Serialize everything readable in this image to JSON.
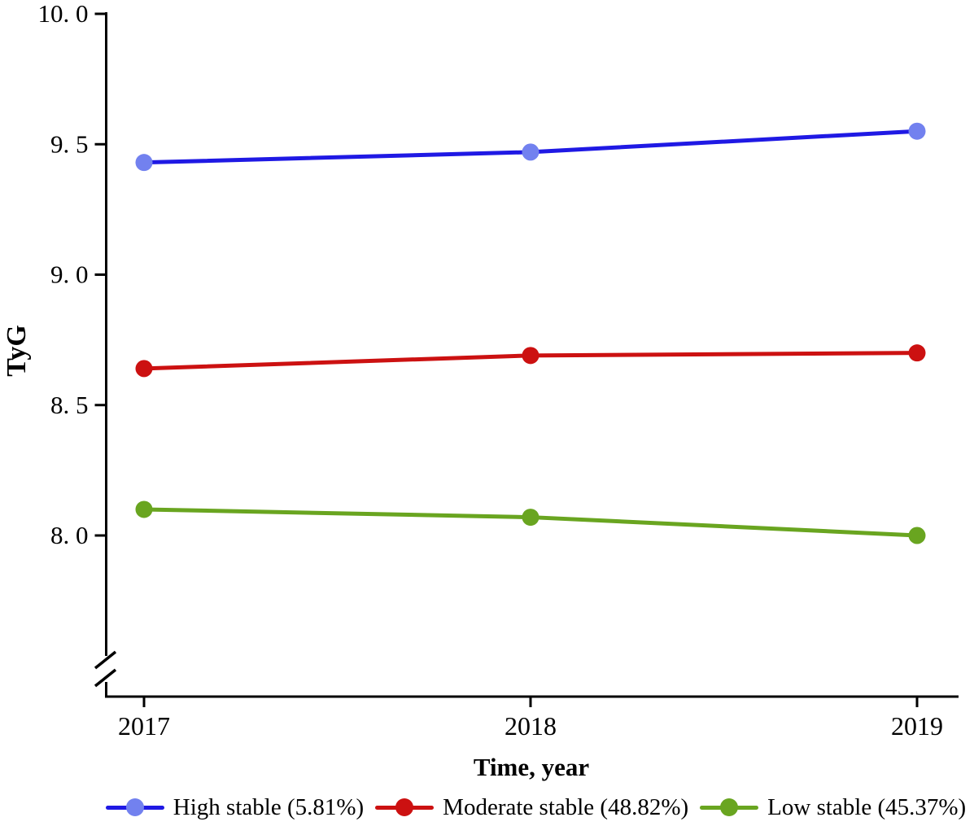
{
  "figure": {
    "background": "#ffffff",
    "text_color": "#000000",
    "axis_color": "#000000"
  },
  "chart_data": {
    "type": "line",
    "title": "",
    "xlabel": "Time, year",
    "ylabel": "TyG",
    "categories": [
      "2017",
      "2018",
      "2019"
    ],
    "series": [
      {
        "name": "High stable (5.81%)",
        "values": [
          9.43,
          9.47,
          9.55
        ],
        "line_color": "#1f19e4",
        "marker_color": "#7281ef"
      },
      {
        "name": "Moderate stable (48.82%)",
        "values": [
          8.64,
          8.69,
          8.7
        ],
        "line_color": "#cc1111",
        "marker_color": "#cc1111"
      },
      {
        "name": "Low stable (45.37%)",
        "values": [
          8.1,
          8.07,
          8.0
        ],
        "line_color": "#69a520",
        "marker_color": "#69a520"
      }
    ],
    "yticks": [
      {
        "value": 10.0,
        "label": "10. 0"
      },
      {
        "value": 9.5,
        "label": "9. 5"
      },
      {
        "value": 9.0,
        "label": "9. 0"
      },
      {
        "value": 8.5,
        "label": "8. 5"
      },
      {
        "value": 8.0,
        "label": "8. 0"
      }
    ],
    "ylim": [
      8.0,
      10.0
    ],
    "axis_break": true,
    "grid": false,
    "legend_position": "bottom"
  }
}
